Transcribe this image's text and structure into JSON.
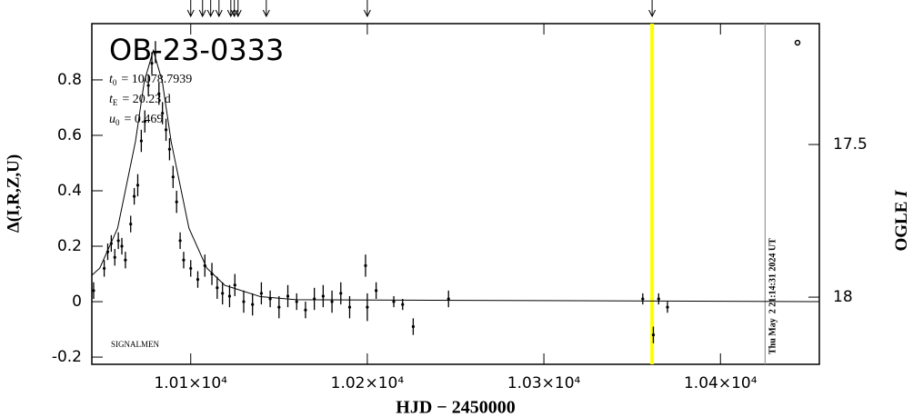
{
  "chart_data": {
    "type": "errorbar",
    "title": "OB-23-0333",
    "params": [
      {
        "symbol": "t",
        "sub": "0",
        "text": "= 10078.7939"
      },
      {
        "symbol": "t",
        "sub": "E",
        "text": "= 20.23 d"
      },
      {
        "symbol": "u",
        "sub": "0",
        "text": "= 0.469"
      }
    ],
    "note": "SIGNALMEN",
    "timestamp": "Thu May  2 21:14:31 2024 UT",
    "xlabel": "HJD − 2450000",
    "ylabel": "Δ(I,R,Z,U)",
    "y2label": {
      "text": "OGLE ",
      "italic": "I"
    },
    "xlim": [
      10044,
      10456
    ],
    "ylim": [
      -0.226,
      1.003
    ],
    "y2lim": [
      18.22,
      17.104
    ],
    "xticks": [
      {
        "value": 10100,
        "label": "1.01×10⁴"
      },
      {
        "value": 10200,
        "label": "1.02×10⁴"
      },
      {
        "value": 10300,
        "label": "1.03×10⁴"
      },
      {
        "value": 10400,
        "label": "1.04×10⁴"
      }
    ],
    "yticks": [
      -0.2,
      0,
      0.2,
      0.4,
      0.6,
      0.8
    ],
    "y2ticks": [
      17.5,
      18
    ],
    "arrows": [
      10100,
      10106.7,
      10111.3,
      10116,
      10122.7,
      10124.7,
      10126.8,
      10142.8,
      10200,
      10361.3
    ],
    "highlight_line": {
      "x": 10361.3,
      "color": "#ffff00"
    },
    "date_line": {
      "x": 10425.3,
      "color": "#999999"
    },
    "points": {
      "color": "#000000",
      "x": [
        10045,
        10051,
        10053,
        10055,
        10057,
        10059,
        10061,
        10063,
        10066,
        10068,
        10070,
        10072,
        10074,
        10076,
        10078,
        10080,
        10082,
        10084,
        10086,
        10088,
        10090,
        10092,
        10094,
        10096,
        10100,
        10104,
        10108,
        10112,
        10115,
        10118,
        10122,
        10125,
        10130,
        10135,
        10140,
        10145,
        10150,
        10155,
        10160,
        10165,
        10170,
        10175,
        10180,
        10185,
        10190,
        10199,
        10200,
        10205,
        10215,
        10220,
        10226,
        10246,
        10356,
        10362,
        10365,
        10370
      ],
      "values": [
        0.04,
        0.12,
        0.18,
        0.21,
        0.16,
        0.22,
        0.2,
        0.15,
        0.28,
        0.38,
        0.42,
        0.58,
        0.65,
        0.78,
        0.86,
        0.9,
        0.75,
        0.68,
        0.62,
        0.55,
        0.45,
        0.36,
        0.22,
        0.15,
        0.12,
        0.08,
        0.13,
        0.1,
        0.05,
        0.03,
        0.02,
        0.06,
        0.0,
        -0.01,
        0.03,
        0.01,
        -0.02,
        0.02,
        0.0,
        -0.03,
        0.01,
        0.02,
        0.0,
        0.03,
        -0.02,
        0.13,
        -0.02,
        0.04,
        0.0,
        -0.01,
        -0.09,
        0.01,
        0.01,
        -0.12,
        0.01,
        -0.02
      ],
      "errors": [
        0.03,
        0.03,
        0.03,
        0.03,
        0.03,
        0.03,
        0.03,
        0.03,
        0.03,
        0.03,
        0.04,
        0.04,
        0.04,
        0.04,
        0.04,
        0.04,
        0.04,
        0.04,
        0.04,
        0.04,
        0.04,
        0.04,
        0.03,
        0.03,
        0.03,
        0.03,
        0.04,
        0.04,
        0.04,
        0.04,
        0.04,
        0.04,
        0.04,
        0.04,
        0.04,
        0.03,
        0.04,
        0.04,
        0.03,
        0.03,
        0.04,
        0.04,
        0.04,
        0.04,
        0.04,
        0.04,
        0.05,
        0.03,
        0.02,
        0.02,
        0.03,
        0.03,
        0.02,
        0.03,
        0.02,
        0.02
      ]
    },
    "model": {
      "color": "#000000",
      "x": [
        10044,
        10048.5,
        10058.6,
        10068.7,
        10073.7,
        10078.8,
        10083.9,
        10088.9,
        10099.0,
        10109.1,
        10119.3,
        10139.5,
        10159.7,
        10456
      ],
      "values": [
        0.095,
        0.121,
        0.265,
        0.578,
        0.794,
        0.906,
        0.794,
        0.578,
        0.265,
        0.121,
        0.059,
        0.018,
        0.007,
        0.0
      ]
    }
  }
}
